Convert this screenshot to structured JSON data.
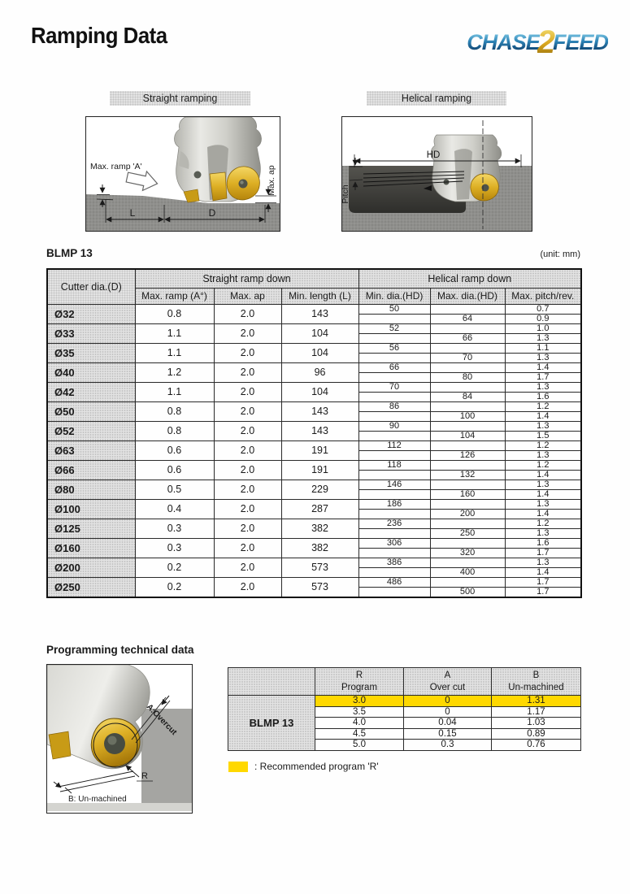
{
  "page": {
    "title": "Ramping Data"
  },
  "logo": {
    "chase": "CHASE",
    "two": "2",
    "feed": "FEED"
  },
  "diagrams": {
    "straight": {
      "label": "Straight ramping",
      "ramp_label": "Max. ramp 'A'",
      "ap_label": "Max. ap",
      "l_label": "L",
      "d_label": "D"
    },
    "helical": {
      "label": "Helical ramping",
      "hd_label": "HD",
      "pitch_label": "Pitch"
    }
  },
  "ramping_table": {
    "title": "BLMP 13",
    "unit": "(unit: mm)",
    "group_headers": {
      "cutter": "Cutter dia.(D)",
      "straight": "Straight ramp down",
      "helical": "Helical ramp down"
    },
    "columns": [
      "Max. ramp (A°)",
      "Max. ap",
      "Min. length (L)",
      "Min. dia.(HD)",
      "Max. dia.(HD)",
      "Max. pitch/rev."
    ],
    "rows": [
      {
        "dia": "Ø32",
        "max_ramp": "0.8",
        "max_ap": "2.0",
        "min_length": "143",
        "min_dia": "50",
        "max_dia": "64",
        "pitch_min": "0.7",
        "pitch_max": "0.9"
      },
      {
        "dia": "Ø33",
        "max_ramp": "1.1",
        "max_ap": "2.0",
        "min_length": "104",
        "min_dia": "52",
        "max_dia": "66",
        "pitch_min": "1.0",
        "pitch_max": "1.3"
      },
      {
        "dia": "Ø35",
        "max_ramp": "1.1",
        "max_ap": "2.0",
        "min_length": "104",
        "min_dia": "56",
        "max_dia": "70",
        "pitch_min": "1.1",
        "pitch_max": "1.3"
      },
      {
        "dia": "Ø40",
        "max_ramp": "1.2",
        "max_ap": "2.0",
        "min_length": "96",
        "min_dia": "66",
        "max_dia": "80",
        "pitch_min": "1.4",
        "pitch_max": "1.7"
      },
      {
        "dia": "Ø42",
        "max_ramp": "1.1",
        "max_ap": "2.0",
        "min_length": "104",
        "min_dia": "70",
        "max_dia": "84",
        "pitch_min": "1.3",
        "pitch_max": "1.6"
      },
      {
        "dia": "Ø50",
        "max_ramp": "0.8",
        "max_ap": "2.0",
        "min_length": "143",
        "min_dia": "86",
        "max_dia": "100",
        "pitch_min": "1.2",
        "pitch_max": "1.4"
      },
      {
        "dia": "Ø52",
        "max_ramp": "0.8",
        "max_ap": "2.0",
        "min_length": "143",
        "min_dia": "90",
        "max_dia": "104",
        "pitch_min": "1.3",
        "pitch_max": "1.5"
      },
      {
        "dia": "Ø63",
        "max_ramp": "0.6",
        "max_ap": "2.0",
        "min_length": "191",
        "min_dia": "112",
        "max_dia": "126",
        "pitch_min": "1.2",
        "pitch_max": "1.3"
      },
      {
        "dia": "Ø66",
        "max_ramp": "0.6",
        "max_ap": "2.0",
        "min_length": "191",
        "min_dia": "118",
        "max_dia": "132",
        "pitch_min": "1.2",
        "pitch_max": "1.4"
      },
      {
        "dia": "Ø80",
        "max_ramp": "0.5",
        "max_ap": "2.0",
        "min_length": "229",
        "min_dia": "146",
        "max_dia": "160",
        "pitch_min": "1.3",
        "pitch_max": "1.4"
      },
      {
        "dia": "Ø100",
        "max_ramp": "0.4",
        "max_ap": "2.0",
        "min_length": "287",
        "min_dia": "186",
        "max_dia": "200",
        "pitch_min": "1.3",
        "pitch_max": "1.4"
      },
      {
        "dia": "Ø125",
        "max_ramp": "0.3",
        "max_ap": "2.0",
        "min_length": "382",
        "min_dia": "236",
        "max_dia": "250",
        "pitch_min": "1.2",
        "pitch_max": "1.3"
      },
      {
        "dia": "Ø160",
        "max_ramp": "0.3",
        "max_ap": "2.0",
        "min_length": "382",
        "min_dia": "306",
        "max_dia": "320",
        "pitch_min": "1.6",
        "pitch_max": "1.7"
      },
      {
        "dia": "Ø200",
        "max_ramp": "0.2",
        "max_ap": "2.0",
        "min_length": "573",
        "min_dia": "386",
        "max_dia": "400",
        "pitch_min": "1.3",
        "pitch_max": "1.4"
      },
      {
        "dia": "Ø250",
        "max_ramp": "0.2",
        "max_ap": "2.0",
        "min_length": "573",
        "min_dia": "486",
        "max_dia": "500",
        "pitch_min": "1.7",
        "pitch_max": "1.7"
      }
    ]
  },
  "programming": {
    "heading": "Programming technical data",
    "diagram": {
      "overcut_label": "A:Overcut",
      "r_label": "R",
      "unmachined_label": "B: Un-machined"
    },
    "table": {
      "row_label": "BLMP 13",
      "columns": [
        {
          "line1": "R",
          "line2": "Program"
        },
        {
          "line1": "A",
          "line2": "Over cut"
        },
        {
          "line1": "B",
          "line2": "Un-machined"
        }
      ],
      "rows": [
        {
          "r": "3.0",
          "a": "0",
          "b": "1.31",
          "highlight": true
        },
        {
          "r": "3.5",
          "a": "0",
          "b": "1.17",
          "highlight": false
        },
        {
          "r": "4.0",
          "a": "0.04",
          "b": "1.03",
          "highlight": false
        },
        {
          "r": "4.5",
          "a": "0.15",
          "b": "0.89",
          "highlight": false
        },
        {
          "r": "5.0",
          "a": "0.3",
          "b": "0.76",
          "highlight": false
        }
      ]
    },
    "legend_text": ": Recommended program 'R'"
  },
  "colors": {
    "highlight_yellow": "#ffd800",
    "header_gray": "#e3e3e3",
    "logo_blue": "#0a3a66",
    "logo_gold": "#d8a51e",
    "overcut_red": "#cc2222"
  }
}
